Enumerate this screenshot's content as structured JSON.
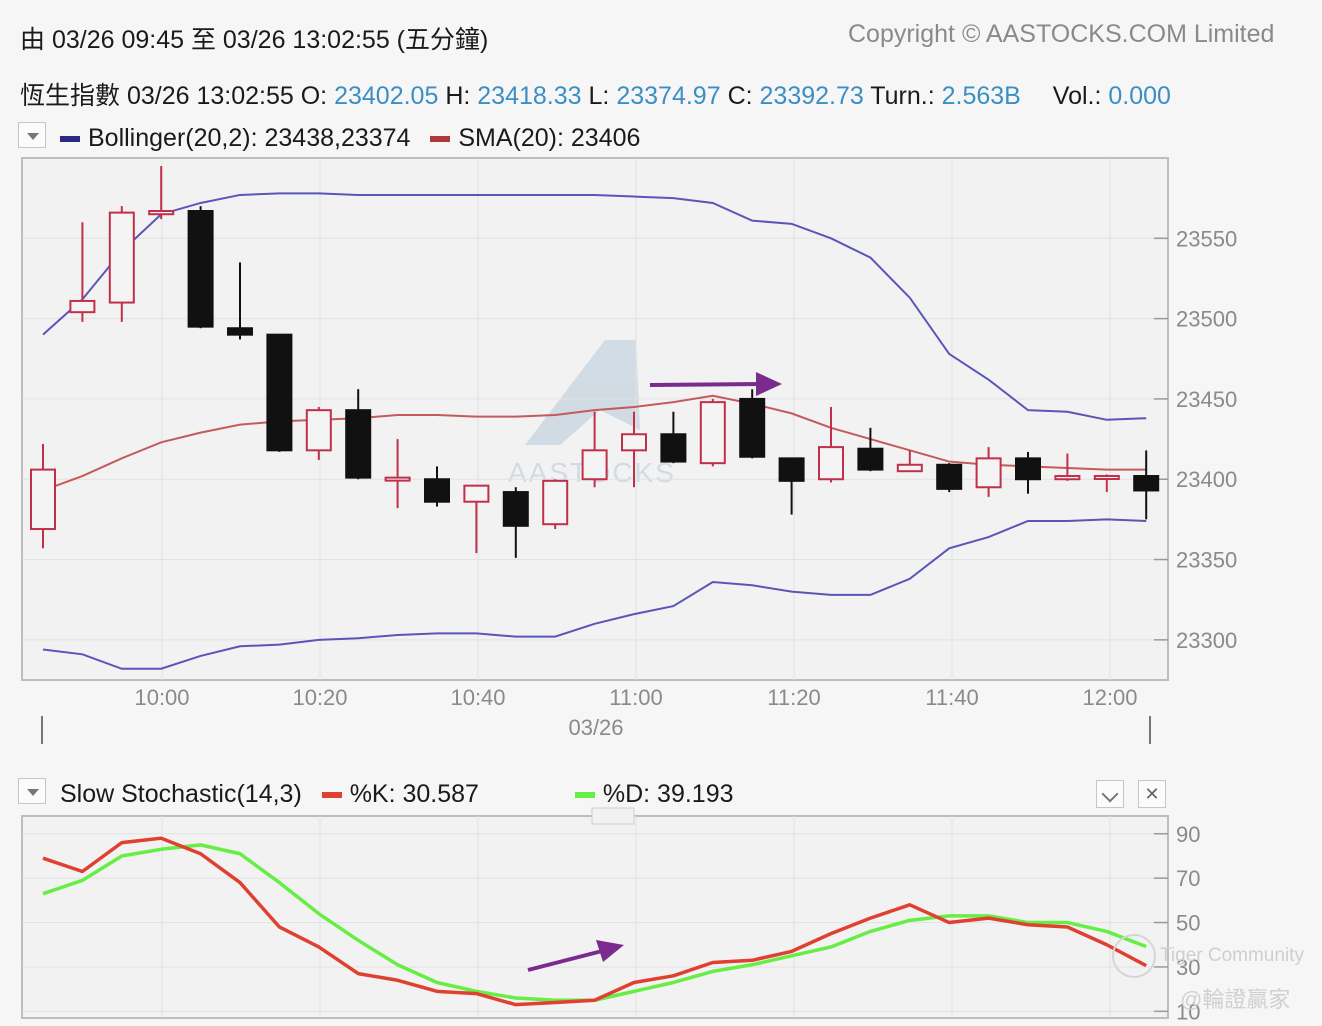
{
  "header": {
    "range_label": "由  03/26 09:45 至  03/26 13:02:55 (五分鐘)",
    "copyright": "Copyright © AASTOCKS.COM Limited"
  },
  "quote": {
    "name_time": "恆生指數  03/26 13:02:55",
    "open_label": "O:",
    "open": "23402.05",
    "high_label": "H:",
    "high": "23418.33",
    "low_label": "L:",
    "low": "23374.97",
    "close_label": "C:",
    "close": "23392.73",
    "turn_label": "Turn.:",
    "turn": "2.563B",
    "vol_label": "Vol.:",
    "vol": "0.000"
  },
  "price_legend": {
    "bollinger": "Bollinger(20,2): 23438,23374",
    "sma": "SMA(20): 23406",
    "bollinger_color": "#2a2a80",
    "sma_color": "#b03a3a"
  },
  "stoch_legend": {
    "title": "Slow Stochastic(14,3)",
    "k": "%K: 30.587",
    "d": "%D: 39.193",
    "k_color": "#e04030",
    "d_color": "#66ee44",
    "close_glyph": "✕"
  },
  "watermark": {
    "aastocks": "AASTOCKS",
    "tiger": "Tiger Community",
    "warrant": "@輪證贏家"
  },
  "chart_data": [
    {
      "type": "candlestick",
      "x_time_labels": [
        "10:00",
        "10:20",
        "10:40",
        "11:00",
        "11:20",
        "11:40",
        "12:00"
      ],
      "x_date_label": "03/26",
      "y_ticks": [
        23550,
        23500,
        23450,
        23400,
        23350,
        23300
      ],
      "ylim": [
        23275,
        23600
      ],
      "grid": true,
      "candles": [
        {
          "o": 23369,
          "h": 23422,
          "l": 23357,
          "c": 23406
        },
        {
          "o": 23504,
          "h": 23560,
          "l": 23498,
          "c": 23511
        },
        {
          "o": 23510,
          "h": 23570,
          "l": 23498,
          "c": 23566
        },
        {
          "o": 23565,
          "h": 23595,
          "l": 23562,
          "c": 23567
        },
        {
          "o": 23567,
          "h": 23570,
          "l": 23494,
          "c": 23495
        },
        {
          "o": 23494,
          "h": 23535,
          "l": 23487,
          "c": 23490
        },
        {
          "o": 23490,
          "h": 23490,
          "l": 23417,
          "c": 23418
        },
        {
          "o": 23418,
          "h": 23445,
          "l": 23412,
          "c": 23443
        },
        {
          "o": 23443,
          "h": 23456,
          "l": 23400,
          "c": 23401
        },
        {
          "o": 23401,
          "h": 23425,
          "l": 23382,
          "c": 23401
        },
        {
          "o": 23400,
          "h": 23408,
          "l": 23383,
          "c": 23386
        },
        {
          "o": 23386,
          "h": 23395,
          "l": 23354,
          "c": 23396
        },
        {
          "o": 23392,
          "h": 23395,
          "l": 23351,
          "c": 23371
        },
        {
          "o": 23372,
          "h": 23400,
          "l": 23369,
          "c": 23399
        },
        {
          "o": 23400,
          "h": 23442,
          "l": 23395,
          "c": 23418
        },
        {
          "o": 23418,
          "h": 23442,
          "l": 23395,
          "c": 23428
        },
        {
          "o": 23428,
          "h": 23442,
          "l": 23410,
          "c": 23411
        },
        {
          "o": 23410,
          "h": 23450,
          "l": 23408,
          "c": 23448
        },
        {
          "o": 23450,
          "h": 23456,
          "l": 23413,
          "c": 23414
        },
        {
          "o": 23413,
          "h": 23413,
          "l": 23378,
          "c": 23399
        },
        {
          "o": 23400,
          "h": 23445,
          "l": 23398,
          "c": 23420
        },
        {
          "o": 23419,
          "h": 23432,
          "l": 23405,
          "c": 23406
        },
        {
          "o": 23405,
          "h": 23418,
          "l": 23405,
          "c": 23409
        },
        {
          "o": 23409,
          "h": 23410,
          "l": 23392,
          "c": 23394
        },
        {
          "o": 23395,
          "h": 23420,
          "l": 23389,
          "c": 23413
        },
        {
          "o": 23413,
          "h": 23417,
          "l": 23391,
          "c": 23400
        },
        {
          "o": 23400,
          "h": 23416,
          "l": 23399,
          "c": 23402
        },
        {
          "o": 23402,
          "h": 23403,
          "l": 23392,
          "c": 23402
        },
        {
          "o": 23402,
          "h": 23418,
          "l": 23375,
          "c": 23393
        }
      ],
      "bollinger_upper": [
        23490,
        23512,
        23542,
        23565,
        23572,
        23577,
        23578,
        23578,
        23577,
        23577,
        23577,
        23577,
        23577,
        23577,
        23577,
        23576,
        23575,
        23572,
        23561,
        23559,
        23550,
        23538,
        23513,
        23478,
        23462,
        23443,
        23442,
        23437,
        23438
      ],
      "bollinger_lower": [
        23294,
        23291,
        23282,
        23282,
        23290,
        23296,
        23297,
        23300,
        23301,
        23303,
        23304,
        23304,
        23302,
        23302,
        23310,
        23316,
        23321,
        23336,
        23334,
        23330,
        23328,
        23328,
        23338,
        23357,
        23364,
        23374,
        23374,
        23375,
        23374
      ],
      "sma": [
        23393,
        23402,
        23413,
        23423,
        23429,
        23434,
        23436,
        23437,
        23438,
        23440,
        23440,
        23439,
        23439,
        23440,
        23443,
        23445,
        23448,
        23452,
        23447,
        23441,
        23432,
        23425,
        23418,
        23411,
        23409,
        23408,
        23407,
        23406,
        23406
      ]
    },
    {
      "type": "line",
      "title": "Slow Stochastic(14,3)",
      "y_ticks": [
        90,
        70,
        50,
        30,
        10
      ],
      "ylim": [
        7,
        98
      ],
      "grid": true,
      "series": [
        {
          "name": "%K",
          "color": "#e04030",
          "values": [
            79,
            73,
            86,
            88,
            81,
            68,
            48,
            39,
            27,
            24,
            19,
            18,
            13,
            14,
            15,
            23,
            26,
            32,
            33,
            37,
            45,
            52,
            58,
            50,
            52,
            49,
            48,
            40,
            30.587
          ]
        },
        {
          "name": "%D",
          "color": "#66ee44",
          "values": [
            63,
            69,
            80,
            83,
            85,
            81,
            68,
            54,
            42,
            31,
            23,
            19,
            16,
            15,
            15,
            19,
            23,
            28,
            31,
            35,
            39,
            46,
            51,
            53,
            53,
            50,
            50,
            46,
            39.193
          ]
        }
      ]
    }
  ]
}
